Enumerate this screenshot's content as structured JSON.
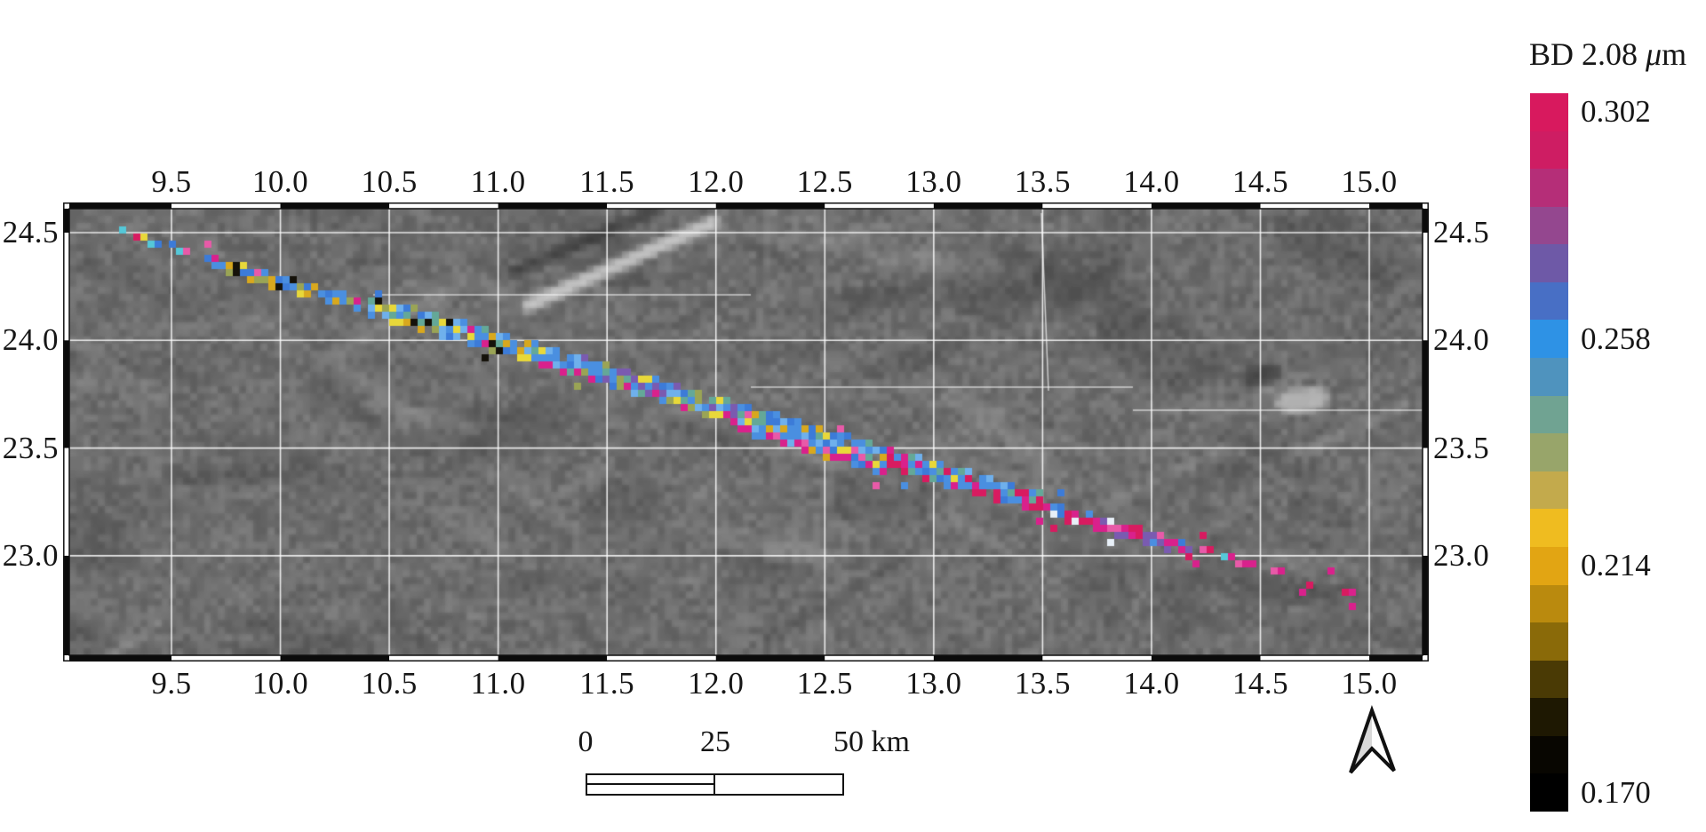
{
  "page": {
    "background": "#ffffff"
  },
  "map": {
    "x_tick_labels": [
      "9.5",
      "10.0",
      "10.5",
      "11.0",
      "11.5",
      "12.0",
      "12.5",
      "13.0",
      "13.5",
      "14.0",
      "14.5",
      "15.0"
    ],
    "y_tick_labels": [
      "24.5",
      "24.0",
      "23.5",
      "23.0"
    ],
    "grid_color": "#ffffff",
    "frame_colors": [
      "#0b0b0b",
      "#ffffff"
    ]
  },
  "colorbar": {
    "title": "BD 2.08 μm",
    "title_parts": [
      "BD 2.08 ",
      "μ",
      "m"
    ],
    "tick_labels": [
      "0.302",
      "0.258",
      "0.214",
      "0.170"
    ],
    "tick_block_indices": [
      0,
      6,
      12,
      18
    ],
    "block_colors": [
      "#d8195e",
      "#ce1d63",
      "#b52e78",
      "#94478f",
      "#6e59a7",
      "#486fc5",
      "#2e92e5",
      "#4f93be",
      "#70a392",
      "#98a56a",
      "#c3aa4c",
      "#efbc20",
      "#e2a513",
      "#ba8a0e",
      "#8a6a09",
      "#4a3a05",
      "#1e1802",
      "#080601",
      "#000000"
    ]
  },
  "scalebar": {
    "labels": [
      "0",
      "25",
      "50 km"
    ],
    "outline": "#111111"
  },
  "north_arrow": {
    "fill_left": "#d9d9d9",
    "fill_right": "#ffffff",
    "stroke": "#111111"
  },
  "track": {
    "start": {
      "lon": 9.26,
      "lat": 24.5
    },
    "end": {
      "lon": 14.91,
      "lat": 22.82
    },
    "pixel_colors": {
      "blue": "#4a8fe0",
      "blue2": "#3c7bd8",
      "lightblue": "#6fb0ec",
      "cyan": "#55c8d8",
      "teal": "#64a898",
      "olive": "#9aa455",
      "yellow": "#e8d83a",
      "gold": "#d8a81e",
      "black": "#15120a",
      "magenta": "#d9218c",
      "pink": "#e85aa8",
      "crimson": "#d81b60",
      "purple": "#7a5bb0",
      "white": "#e8f0f8"
    },
    "segments": [
      {
        "from": 0.0,
        "to": 0.065,
        "rows": 1,
        "skip": 0.25,
        "palette": [
          "cyan",
          "crimson",
          "magenta",
          "blue",
          "pink",
          "yellow",
          "blue2"
        ]
      },
      {
        "from": 0.065,
        "to": 0.2,
        "rows": 2,
        "skip": 0.15,
        "palette": [
          "blue",
          "gold",
          "yellow",
          "black",
          "magenta",
          "blue2",
          "olive",
          "pink",
          "gold",
          "black",
          "blue"
        ]
      },
      {
        "from": 0.2,
        "to": 0.33,
        "rows": 3,
        "skip": 0.07,
        "palette": [
          "blue",
          "blue",
          "blue2",
          "lightblue",
          "gold",
          "yellow",
          "olive",
          "magenta",
          "black",
          "teal"
        ]
      },
      {
        "from": 0.33,
        "to": 0.5,
        "rows": 3,
        "skip": 0.05,
        "edge": "magenta",
        "palette": [
          "blue",
          "blue",
          "blue",
          "blue2",
          "lightblue",
          "yellow",
          "olive",
          "teal",
          "purple"
        ]
      },
      {
        "from": 0.5,
        "to": 0.62,
        "rows": 4,
        "skip": 0.06,
        "edge": "magenta",
        "palette": [
          "blue",
          "blue2",
          "blue",
          "blue",
          "pink",
          "yellow",
          "gold",
          "teal",
          "lightblue"
        ]
      },
      {
        "from": 0.62,
        "to": 0.75,
        "rows": 3,
        "skip": 0.05,
        "edge": "crimson",
        "palette": [
          "blue",
          "blue2",
          "lightblue",
          "blue",
          "magenta",
          "crimson",
          "teal",
          "yellow"
        ]
      },
      {
        "from": 0.75,
        "to": 0.87,
        "rows": 2,
        "skip": 0.1,
        "palette": [
          "magenta",
          "crimson",
          "blue",
          "pink",
          "blue2",
          "magenta",
          "white",
          "purple"
        ]
      },
      {
        "from": 0.87,
        "to": 1.0,
        "rows": 1,
        "skip": 0.5,
        "palette": [
          "magenta",
          "crimson",
          "pink",
          "magenta",
          "cyan"
        ]
      }
    ]
  },
  "chart_data": {
    "type": "map",
    "x_axis": {
      "ticks": [
        9.5,
        10.0,
        10.5,
        11.0,
        11.5,
        12.0,
        12.5,
        13.0,
        13.5,
        14.0,
        14.5,
        15.0
      ]
    },
    "y_axis": {
      "ticks": [
        24.5,
        24.0,
        23.5,
        23.0
      ]
    },
    "colorbar": {
      "title": "BD 2.08 μm",
      "min": 0.17,
      "max": 0.302,
      "tick_values": [
        0.302,
        0.258,
        0.214,
        0.17
      ],
      "n_steps": 19
    },
    "scalebar_km": [
      0,
      25,
      50
    ],
    "track_endpoints": [
      [
        9.26,
        24.5
      ],
      [
        14.91,
        22.82
      ]
    ],
    "basemap": "grayscale grooved terrain"
  }
}
